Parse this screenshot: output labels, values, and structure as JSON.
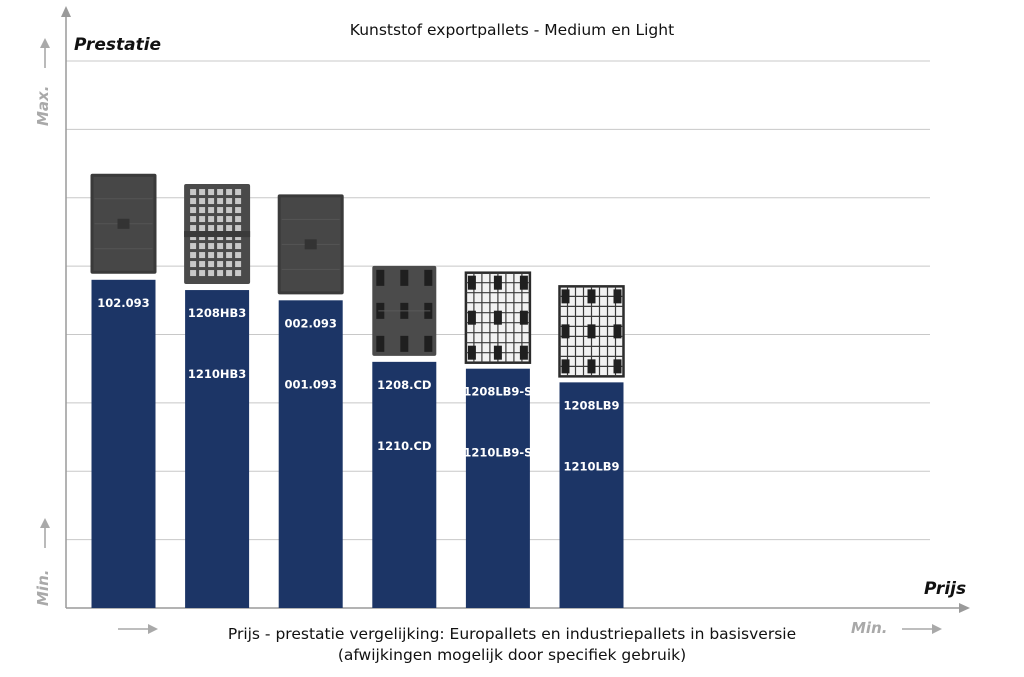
{
  "title": "Kunststof exportpallets - Medium en Light",
  "y_axis_label": "Prestatie",
  "x_axis_label": "Prijs",
  "y_axis_max": "Max.",
  "y_axis_min": "Min.",
  "x_axis_min": "Min.",
  "footer_line1": "Prijs - prestatie vergelijking: Europallets en industriepallets in basisversie",
  "footer_line2": "(afwijkingen mogelijk door specifiek gebruik)",
  "colors": {
    "bar": "#1c3566",
    "grid": "#c8c8c8",
    "axis": "#9a9a9a",
    "arrow": "#a9a9a9"
  },
  "chart_data": {
    "type": "bar",
    "title": "Kunststof exportpallets - Medium en Light",
    "xlabel": "Prijs",
    "ylabel": "Prestatie",
    "ylim": [
      0,
      8
    ],
    "grid": true,
    "categories": [
      [
        "102.093"
      ],
      [
        "1208HB3",
        "1210HB3"
      ],
      [
        "002.093",
        "001.093"
      ],
      [
        "1208.CD",
        "1210.CD"
      ],
      [
        "1208LB9-S",
        "1210LB9-S"
      ],
      [
        "1208LB9",
        "1210LB9"
      ]
    ],
    "values": [
      4.8,
      4.65,
      4.5,
      3.6,
      3.5,
      3.3
    ],
    "images": [
      {
        "name": "closed-deck-pallet-icon"
      },
      {
        "name": "grid-pallet-icon"
      },
      {
        "name": "closed-deck-pallet-icon"
      },
      {
        "name": "nine-block-pallet-icon"
      },
      {
        "name": "open-grid-pallet-icon"
      },
      {
        "name": "open-grid-pallet-icon"
      }
    ]
  }
}
